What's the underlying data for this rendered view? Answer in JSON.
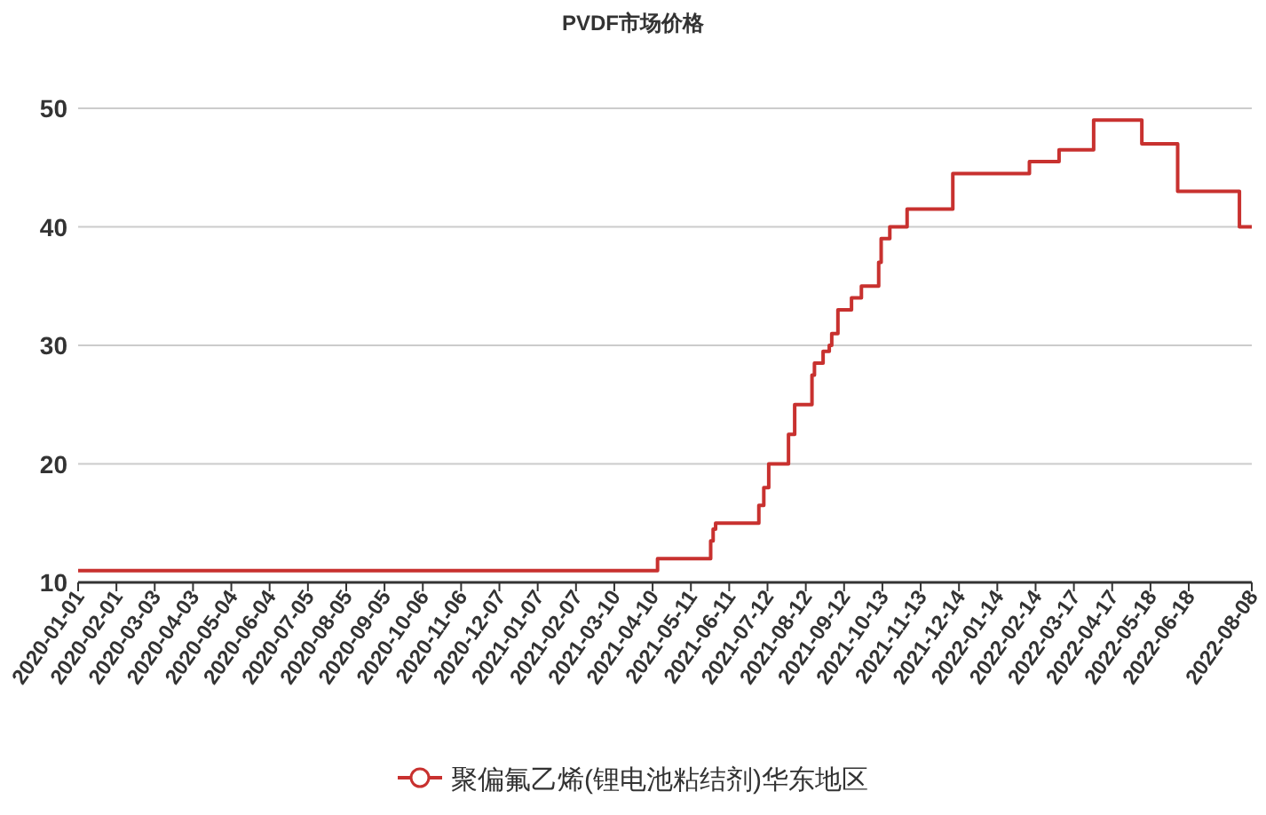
{
  "chart_data": {
    "type": "step",
    "title": "PVDF市场价格",
    "x": [
      "2020-01-01",
      "2021-04-14",
      "2021-05-27",
      "2021-05-29",
      "2021-05-31",
      "2021-07-05",
      "2021-07-09",
      "2021-07-13",
      "2021-07-29",
      "2021-08-03",
      "2021-08-17",
      "2021-08-19",
      "2021-08-26",
      "2021-08-31",
      "2021-09-02",
      "2021-09-07",
      "2021-09-18",
      "2021-09-26",
      "2021-10-10",
      "2021-10-12",
      "2021-10-19",
      "2021-11-02",
      "2021-12-09",
      "2022-02-09",
      "2022-03-05",
      "2022-04-02",
      "2022-05-11",
      "2022-06-09",
      "2022-07-29",
      "2022-08-08"
    ],
    "series": [
      {
        "name": "聚偏氟乙烯(锂电池粘结剂)华东地区",
        "color": "#c8312f",
        "values": [
          11,
          12,
          13.5,
          14.5,
          15,
          16.5,
          18,
          20,
          22.5,
          25,
          27.5,
          28.5,
          29.5,
          30,
          31,
          33,
          34,
          35,
          37,
          39,
          40,
          41.5,
          44.5,
          45.5,
          46.5,
          49,
          47,
          43,
          40,
          40
        ]
      }
    ],
    "xlim": [
      "2020-01-01",
      "2022-08-08"
    ],
    "xticks": [
      "2020-01-01",
      "2020-02-01",
      "2020-03-03",
      "2020-04-03",
      "2020-05-04",
      "2020-06-04",
      "2020-07-05",
      "2020-08-05",
      "2020-09-05",
      "2020-10-06",
      "2020-11-06",
      "2020-12-07",
      "2021-01-07",
      "2021-02-07",
      "2021-03-10",
      "2021-04-10",
      "2021-05-11",
      "2021-06-11",
      "2021-07-12",
      "2021-08-12",
      "2021-09-12",
      "2021-10-13",
      "2021-11-13",
      "2021-12-14",
      "2022-01-14",
      "2022-02-14",
      "2022-03-17",
      "2022-04-17",
      "2022-05-18",
      "2022-06-18",
      "2022-08-08"
    ],
    "ylim": [
      10,
      50
    ],
    "yticks": [
      10,
      20,
      30,
      40,
      50
    ],
    "grid": "y",
    "legend": "bottom"
  }
}
